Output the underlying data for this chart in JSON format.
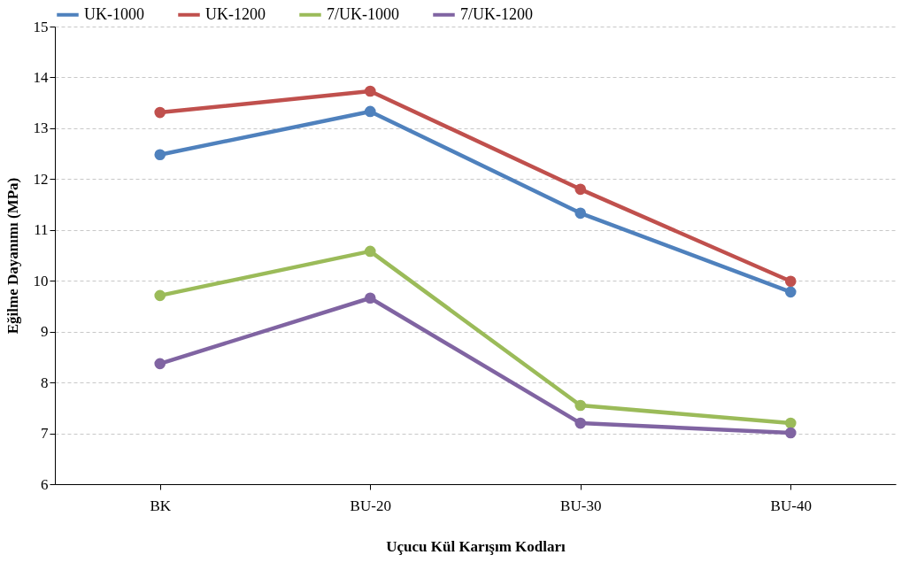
{
  "chart_data": {
    "type": "line",
    "xlabel": "Uçucu Kül Karışım Kodları",
    "ylabel": "Eğilme Dayanımı (MPa)",
    "categories": [
      "BK",
      "BU-20",
      "BU-30",
      "BU-40"
    ],
    "series": [
      {
        "name": "UK-1000",
        "color": "#4f81bd",
        "values": [
          12.48,
          13.33,
          11.33,
          9.78
        ]
      },
      {
        "name": "UK-1200",
        "color": "#c0504d",
        "values": [
          13.31,
          13.73,
          11.8,
          9.99
        ]
      },
      {
        "name": "7/UK-1000",
        "color": "#9bbb59",
        "values": [
          9.71,
          10.58,
          7.55,
          7.2
        ]
      },
      {
        "name": "7/UK-1200",
        "color": "#8064a2",
        "values": [
          8.37,
          9.66,
          7.2,
          7.01
        ]
      }
    ],
    "ylim": [
      6,
      15
    ],
    "yticks": [
      6,
      7,
      8,
      9,
      10,
      11,
      12,
      13,
      14,
      15
    ],
    "grid": "y",
    "legend": "top",
    "marker": "circle",
    "line_style": "solid"
  }
}
